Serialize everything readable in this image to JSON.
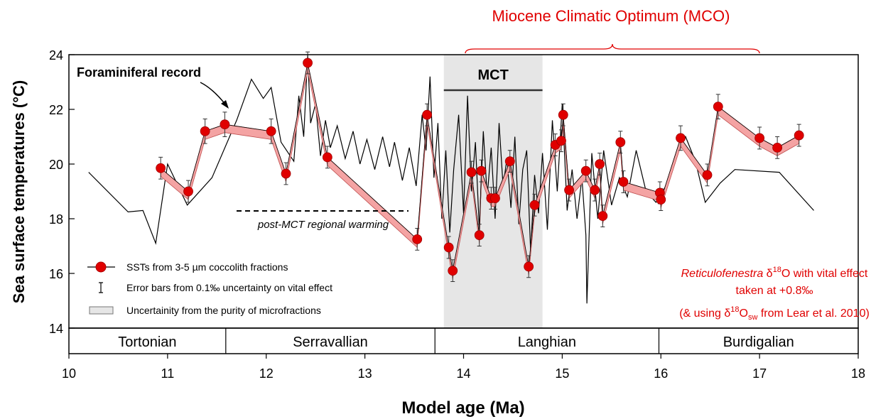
{
  "chart_data": {
    "type": "line",
    "annotation_top": "Miocene Climatic Optimum (MCO)",
    "x_label": "Model age (Ma)",
    "y_label": "Sea surface temperatures (°C)",
    "xlim": [
      10,
      18
    ],
    "xticks": [
      10,
      11,
      12,
      13,
      14,
      15,
      16,
      17,
      18
    ],
    "ylim": [
      14,
      24
    ],
    "yticks": [
      14,
      16,
      18,
      20,
      22,
      24
    ],
    "mct": {
      "label": "MCT",
      "span": [
        13.8,
        14.8
      ]
    },
    "foram_label": "Foraminiferal record",
    "warming_label": "post-MCT regional warming",
    "stages": [
      {
        "name": "Tortonian",
        "span": [
          10,
          11.59
        ]
      },
      {
        "name": "Serravallian",
        "span": [
          11.59,
          13.71
        ]
      },
      {
        "name": "Langhian",
        "span": [
          13.71,
          15.98
        ]
      },
      {
        "name": "Burdigalian",
        "span": [
          15.98,
          18
        ]
      }
    ],
    "series": [
      {
        "name": "SSTs from 3-5 µm coccolith fractions",
        "color": "#e00000",
        "x": [
          10.93,
          11.21,
          11.38,
          11.58,
          12.05,
          12.2,
          12.42,
          12.62,
          13.53,
          13.63,
          13.85,
          13.89,
          14.08,
          14.16,
          14.18,
          14.28,
          14.32,
          14.47,
          14.66,
          14.72,
          14.93,
          14.99,
          15.01,
          15.07,
          15.24,
          15.33,
          15.38,
          15.41,
          15.59,
          15.62,
          15.99,
          16.0,
          16.2,
          16.47,
          16.58,
          17.0,
          17.18,
          17.4
        ],
        "values": [
          19.85,
          19.0,
          21.2,
          21.45,
          21.2,
          19.65,
          23.7,
          20.25,
          17.25,
          21.8,
          16.95,
          16.1,
          19.7,
          17.4,
          19.75,
          18.75,
          18.75,
          20.1,
          16.25,
          18.5,
          20.7,
          20.85,
          21.8,
          19.05,
          19.75,
          19.05,
          20.0,
          18.1,
          20.8,
          19.35,
          18.95,
          18.7,
          20.95,
          19.6,
          22.1,
          20.95,
          20.6,
          21.05
        ],
        "error": [
          0.4,
          0.4,
          0.45,
          0.45,
          0.45,
          0.4,
          0.4,
          0.4,
          0.4,
          0.4,
          0.4,
          0.4,
          0.4,
          0.4,
          0.4,
          0.4,
          0.4,
          0.4,
          0.4,
          0.4,
          0.4,
          0.4,
          0.4,
          0.4,
          0.4,
          0.4,
          0.4,
          0.4,
          0.4,
          0.4,
          0.4,
          0.4,
          0.45,
          0.4,
          0.45,
          0.4,
          0.4,
          0.4
        ],
        "band_lower": [
          19.55,
          18.7,
          20.9,
          21.15,
          20.9,
          19.35,
          23.4,
          19.95,
          16.95,
          21.5,
          16.65,
          15.8,
          19.4,
          17.1,
          19.45,
          18.45,
          18.45,
          19.8,
          15.95,
          18.2,
          20.4,
          20.55,
          21.5,
          18.75,
          19.45,
          18.75,
          19.7,
          17.8,
          20.5,
          19.05,
          18.65,
          18.4,
          20.65,
          19.3,
          21.8,
          20.65,
          20.3,
          20.75
        ]
      },
      {
        "name": "Foraminiferal record",
        "color": "#000000",
        "x": [
          10.2,
          10.6,
          10.75,
          10.88,
          11.0,
          11.2,
          11.45,
          11.7,
          11.85,
          11.97,
          12.05,
          12.15,
          12.28,
          12.33,
          12.38,
          12.42,
          12.45,
          12.5,
          12.55,
          12.6,
          12.65,
          12.72,
          12.8,
          12.88,
          12.95,
          13.02,
          13.1,
          13.18,
          13.25,
          13.3,
          13.38,
          13.45,
          13.52,
          13.58,
          13.62,
          13.66,
          13.7,
          13.74,
          13.78,
          13.82,
          13.86,
          13.9,
          13.95,
          14.0,
          14.04,
          14.08,
          14.12,
          14.16,
          14.2,
          14.24,
          14.28,
          14.32,
          14.36,
          14.4,
          14.44,
          14.48,
          14.52,
          14.56,
          14.6,
          14.64,
          14.68,
          14.72,
          14.76,
          14.8,
          14.85,
          14.9,
          14.95,
          15.0,
          15.05,
          15.1,
          15.15,
          15.2,
          15.24,
          15.25,
          15.3,
          15.36,
          15.42,
          15.5,
          15.58,
          15.66,
          15.75,
          15.85,
          15.95,
          16.05,
          16.15,
          16.25,
          16.35,
          16.45,
          16.6,
          16.75,
          17.2,
          17.55
        ],
        "values": [
          19.7,
          18.25,
          18.3,
          17.1,
          20.0,
          18.5,
          19.5,
          21.6,
          23.1,
          22.4,
          22.8,
          20.8,
          20.1,
          22.5,
          21.0,
          24.0,
          21.5,
          22.2,
          20.3,
          21.6,
          20.6,
          21.4,
          20.2,
          21.2,
          20.0,
          20.9,
          19.8,
          21.0,
          19.9,
          20.8,
          19.4,
          20.6,
          19.2,
          21.8,
          20.5,
          23.2,
          19.5,
          21.5,
          18.0,
          20.5,
          17.5,
          19.8,
          21.8,
          18.2,
          22.5,
          19.0,
          20.8,
          17.6,
          21.2,
          18.8,
          20.6,
          18.0,
          21.5,
          19.2,
          20.2,
          18.4,
          21.0,
          17.8,
          19.8,
          20.5,
          16.8,
          19.6,
          18.2,
          20.4,
          17.6,
          21.6,
          19.0,
          22.2,
          18.3,
          19.8,
          18.0,
          19.5,
          17.4,
          14.9,
          20.4,
          18.0,
          20.5,
          18.5,
          19.5,
          18.8,
          20.5,
          19.0,
          18.6,
          19.2,
          20.3,
          21.0,
          20.1,
          18.6,
          19.3,
          19.8,
          19.7,
          18.3
        ]
      }
    ],
    "legend": {
      "error_bars": "Error bars from 0.1‰ uncertainty on vital effect",
      "band": "Uncertainity from the purity of microfractions"
    },
    "note": {
      "line1": [
        "Reticulofenestra",
        " δ",
        "18",
        "O with vital effect"
      ],
      "line2": "taken at +0.8‰",
      "line3": [
        "(& using δ",
        "18",
        "O",
        "sw",
        " from Lear et al. 2010)"
      ]
    }
  }
}
